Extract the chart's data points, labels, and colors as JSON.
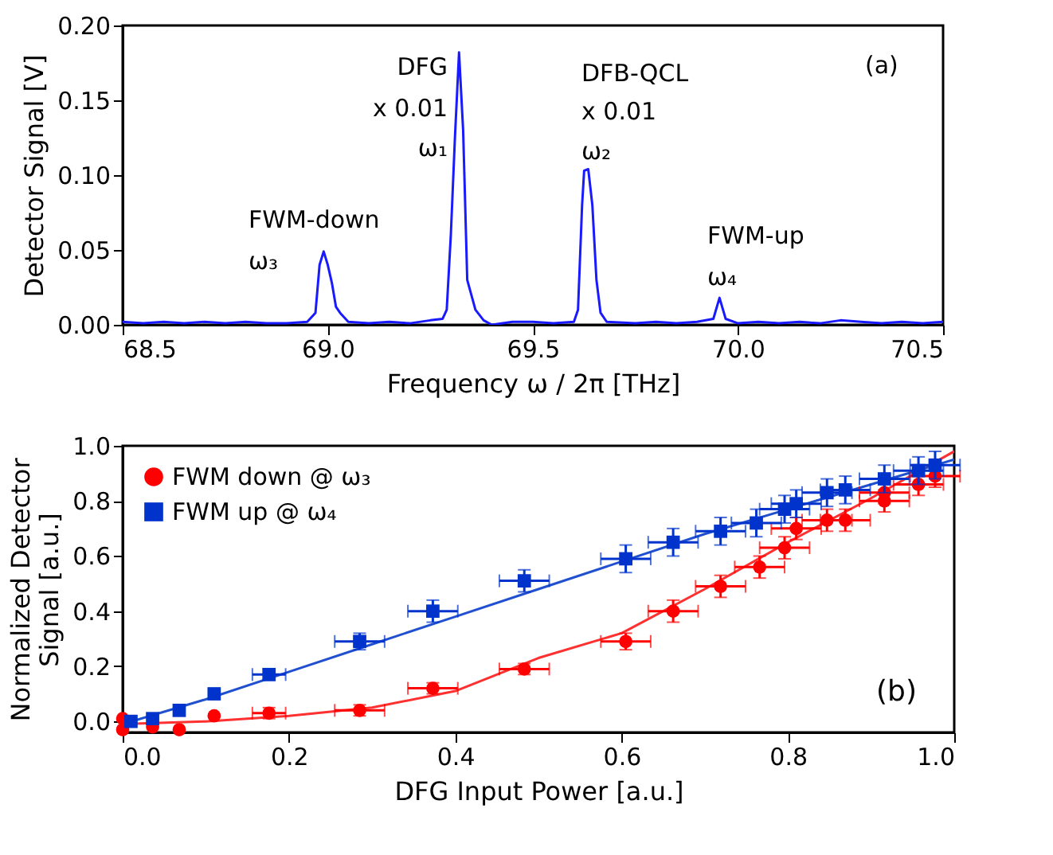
{
  "chart_data": [
    {
      "type": "line",
      "xlabel": "Frequency  ω / 2π [THz]",
      "ylabel": "Detector Signal [V]",
      "color": "#1a1aff",
      "x": [
        68.5,
        68.55,
        68.6,
        68.65,
        68.7,
        68.75,
        68.8,
        68.85,
        68.9,
        68.95,
        68.97,
        68.98,
        68.99,
        69.0,
        69.01,
        69.02,
        69.03,
        69.05,
        69.1,
        69.15,
        69.2,
        69.25,
        69.28,
        69.29,
        69.3,
        69.31,
        69.32,
        69.33,
        69.34,
        69.35,
        69.36,
        69.38,
        69.4,
        69.45,
        69.5,
        69.55,
        69.6,
        69.61,
        69.62,
        69.625,
        69.635,
        69.645,
        69.655,
        69.665,
        69.68,
        69.75,
        69.8,
        69.85,
        69.9,
        69.94,
        69.955,
        69.97,
        70.0,
        70.05,
        70.1,
        70.15,
        70.2,
        70.25,
        70.3,
        70.35,
        70.4,
        70.45,
        70.5
      ],
      "values": [
        0.002,
        0.001,
        0.002,
        0.001,
        0.002,
        0.001,
        0.002,
        0.001,
        0.001,
        0.002,
        0.008,
        0.04,
        0.049,
        0.04,
        0.028,
        0.012,
        0.008,
        0.002,
        0.001,
        0.002,
        0.001,
        0.003,
        0.004,
        0.01,
        0.06,
        0.125,
        0.182,
        0.13,
        0.03,
        0.02,
        0.01,
        0.003,
        0.0,
        0.002,
        0.002,
        0.001,
        0.002,
        0.01,
        0.08,
        0.103,
        0.104,
        0.08,
        0.03,
        0.008,
        0.002,
        0.001,
        0.002,
        0.001,
        0.002,
        0.004,
        0.018,
        0.004,
        0.001,
        0.002,
        0.001,
        0.002,
        0.001,
        0.003,
        0.002,
        0.001,
        0.002,
        0.001,
        0.002
      ],
      "xlim": [
        68.5,
        70.5
      ],
      "xticks": [
        {
          "value": 68.5,
          "label": "68.5"
        },
        {
          "value": 69,
          "label": "69.0"
        },
        {
          "value": 69.5,
          "label": "69.5"
        },
        {
          "value": 70,
          "label": "70.0"
        },
        {
          "value": 70.5,
          "label": "70.5"
        }
      ],
      "ylim": [
        0,
        0.2
      ],
      "yticks": [
        {
          "value": 0,
          "label": "0.00"
        },
        {
          "value": 0.05,
          "label": "0.05"
        },
        {
          "value": 0.1,
          "label": "0.10"
        },
        {
          "value": 0.15,
          "label": "0.15"
        },
        {
          "value": 0.2,
          "label": "0.20"
        }
      ],
      "annotations": [
        "FWM-down",
        "ω₃",
        "DFG",
        "x 0.01",
        "ω₁",
        "DFB-QCL",
        "x 0.01",
        "ω₂",
        "FWM-up",
        "ω₄",
        "(a)"
      ]
    },
    {
      "type": "scatter",
      "xlabel": "DFG Input Power [a.u.]",
      "ylabel": "Normalized Detector\nSignal [a.u.]",
      "legend": "top left",
      "xlim": [
        0,
        1
      ],
      "xticks": [
        {
          "value": 0,
          "label": "0.0"
        },
        {
          "value": 0.2,
          "label": "0.2"
        },
        {
          "value": 0.4,
          "label": "0.4"
        },
        {
          "value": 0.6,
          "label": "0.6"
        },
        {
          "value": 0.8,
          "label": "0.8"
        },
        {
          "value": 1,
          "label": "1.0"
        }
      ],
      "ylim": [
        -0.04,
        1
      ],
      "yticks": [
        {
          "value": 0,
          "label": "0.0"
        },
        {
          "value": 0.2,
          "label": "0.2"
        },
        {
          "value": 0.4,
          "label": "0.4"
        },
        {
          "value": 0.6,
          "label": "0.6"
        },
        {
          "value": 0.8,
          "label": "0.8"
        },
        {
          "value": 1,
          "label": "1.0"
        }
      ],
      "series": [
        {
          "name": "FWM down @ ω₃",
          "color": "#ff0000",
          "marker": "circle",
          "x": [
            0.0,
            0.0,
            0.036,
            0.068,
            0.11,
            0.176,
            0.285,
            0.373,
            0.483,
            0.605,
            0.662,
            0.719,
            0.766,
            0.796,
            0.81,
            0.847,
            0.869,
            0.916,
            0.916,
            0.957,
            0.977
          ],
          "values": [
            0.01,
            -0.03,
            -0.02,
            -0.03,
            0.02,
            0.03,
            0.04,
            0.12,
            0.19,
            0.29,
            0.4,
            0.49,
            0.56,
            0.63,
            0.7,
            0.73,
            0.73,
            0.8,
            0.83,
            0.86,
            0.89
          ],
          "errors": [
            null,
            null,
            null,
            null,
            null,
            0.02,
            0.02,
            0.02,
            0.02,
            0.03,
            0.04,
            0.04,
            0.04,
            0.04,
            0.04,
            0.04,
            0.04,
            0.04,
            0.04,
            0.04,
            0.04
          ],
          "xerrors": [
            null,
            null,
            null,
            null,
            null,
            0.02,
            0.03,
            0.03,
            0.03,
            0.03,
            0.03,
            0.03,
            0.03,
            0.03,
            0.03,
            0.03,
            0.03,
            0.03,
            0.03,
            0.03,
            0.03
          ]
        },
        {
          "name": "FWM up @ ω₄",
          "color": "#0033cc",
          "marker": "square",
          "x": [
            0.01,
            0.036,
            0.068,
            0.11,
            0.176,
            0.285,
            0.373,
            0.483,
            0.605,
            0.662,
            0.719,
            0.762,
            0.796,
            0.81,
            0.847,
            0.869,
            0.916,
            0.957,
            0.977
          ],
          "values": [
            0.0,
            0.01,
            0.04,
            0.1,
            0.17,
            0.29,
            0.4,
            0.51,
            0.59,
            0.65,
            0.69,
            0.72,
            0.77,
            0.79,
            0.83,
            0.84,
            0.88,
            0.91,
            0.93
          ],
          "errors": [
            null,
            null,
            null,
            null,
            0.02,
            0.03,
            0.04,
            0.04,
            0.05,
            0.05,
            0.05,
            0.05,
            0.05,
            0.05,
            0.05,
            0.05,
            0.05,
            0.05,
            0.05
          ],
          "xerrors": [
            null,
            null,
            null,
            null,
            0.02,
            0.03,
            0.03,
            0.03,
            0.03,
            0.03,
            0.03,
            0.03,
            0.03,
            0.03,
            0.03,
            0.03,
            0.03,
            0.03,
            0.03
          ]
        },
        {
          "type": "line",
          "color": "#ff3030",
          "x": [
            0,
            0.1,
            0.2,
            0.3,
            0.4,
            0.5,
            0.6,
            0.7,
            0.8,
            0.9,
            1.0
          ],
          "values": [
            -0.01,
            0.0,
            0.02,
            0.05,
            0.11,
            0.23,
            0.32,
            0.48,
            0.65,
            0.81,
            0.98
          ]
        },
        {
          "type": "line",
          "color": "#2050d0",
          "x": [
            0,
            0.1,
            0.2,
            0.3,
            0.4,
            0.5,
            0.6,
            0.7,
            0.8,
            0.9,
            1.0
          ],
          "values": [
            -0.01,
            0.08,
            0.18,
            0.28,
            0.38,
            0.48,
            0.58,
            0.68,
            0.77,
            0.86,
            0.95
          ]
        }
      ],
      "annotations": [
        "(b)"
      ]
    }
  ]
}
